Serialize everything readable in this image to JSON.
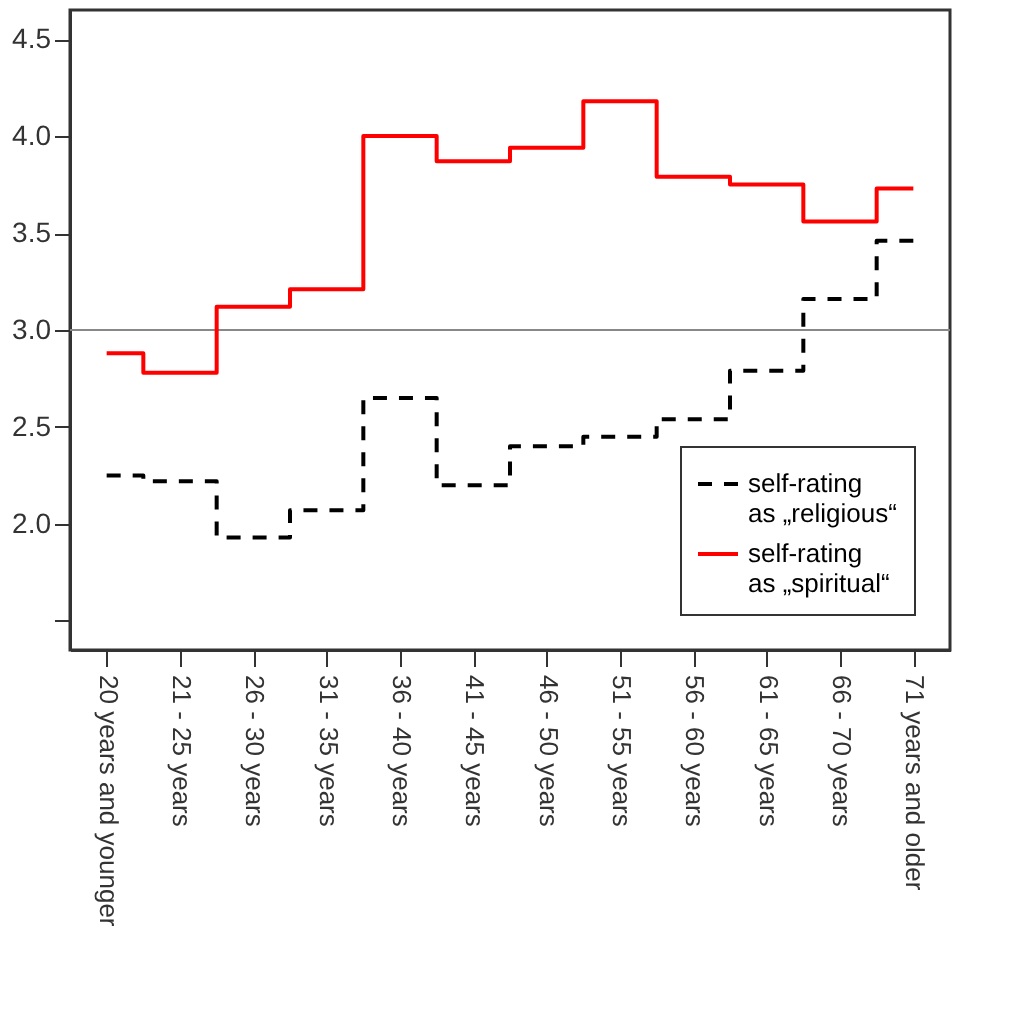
{
  "chart_data": {
    "type": "step",
    "categories": [
      "20 years and younger",
      "21 - 25 years",
      "26 - 30 years",
      "31 - 35 years",
      "36 - 40 years",
      "41 - 45 years",
      "46 - 50 years",
      "51 - 55 years",
      "56 - 60 years",
      "61 - 65 years",
      "66 - 70 years",
      "71 years and older"
    ],
    "series": [
      {
        "name": "self-rating as „religious“",
        "color": "#000000",
        "line_style": "dashed",
        "values": [
          2.25,
          2.22,
          1.93,
          2.07,
          2.65,
          2.2,
          2.4,
          2.45,
          2.54,
          2.79,
          3.16,
          3.46
        ]
      },
      {
        "name": "self-rating as „spiritual“",
        "color": "#ff0000",
        "line_style": "solid",
        "values": [
          2.88,
          2.78,
          3.12,
          3.21,
          4.0,
          3.87,
          3.94,
          4.18,
          3.79,
          3.75,
          3.56,
          3.73
        ]
      }
    ],
    "ylim": [
      1.35,
      4.65
    ],
    "yticks": [
      {
        "value": 1.5,
        "label": null
      },
      {
        "value": 2.0,
        "label": "2.0"
      },
      {
        "value": 2.5,
        "label": "2.5"
      },
      {
        "value": 3.0,
        "label": "3.0"
      },
      {
        "value": 3.5,
        "label": "3.5"
      },
      {
        "value": 4.0,
        "label": "4.0"
      },
      {
        "value": 4.5,
        "label": "4.5"
      }
    ],
    "ref_lines": [
      {
        "axis": "y",
        "value": 3.0,
        "label": null,
        "color": "#888888"
      }
    ],
    "legend": "bottom right",
    "grid": false
  }
}
